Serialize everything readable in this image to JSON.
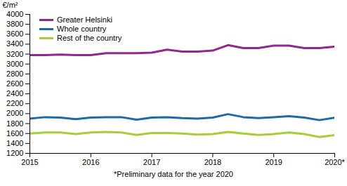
{
  "chart_data": {
    "type": "line",
    "y_label": "€/m²",
    "caption": "*Preliminary data for the year 2020",
    "x": [
      2015,
      2015.25,
      2015.5,
      2015.75,
      2016,
      2016.25,
      2016.5,
      2016.75,
      2017,
      2017.25,
      2017.5,
      2017.75,
      2018,
      2018.25,
      2018.5,
      2018.75,
      2019,
      2019.25,
      2019.5,
      2019.75,
      2020
    ],
    "series": [
      {
        "name": "Greater Helsinki",
        "color": "#93278f",
        "values": [
          3180,
          3180,
          3190,
          3180,
          3180,
          3220,
          3220,
          3220,
          3230,
          3290,
          3250,
          3250,
          3270,
          3380,
          3320,
          3320,
          3370,
          3370,
          3320,
          3320,
          3350
        ]
      },
      {
        "name": "Whole country",
        "color": "#1f6aa5",
        "values": [
          1900,
          1930,
          1920,
          1890,
          1920,
          1930,
          1930,
          1880,
          1920,
          1930,
          1910,
          1900,
          1920,
          1990,
          1930,
          1910,
          1930,
          1950,
          1920,
          1870,
          1920
        ]
      },
      {
        "name": "Rest of the country",
        "color": "#a6ce39",
        "values": [
          1600,
          1620,
          1620,
          1590,
          1620,
          1630,
          1620,
          1570,
          1610,
          1610,
          1600,
          1580,
          1590,
          1630,
          1600,
          1570,
          1590,
          1620,
          1590,
          1530,
          1570
        ]
      }
    ],
    "xlim": [
      2015,
      2020
    ],
    "xticks": [
      2015,
      2016,
      2017,
      2018,
      2019,
      {
        "value": 2020,
        "label": "2020*"
      }
    ],
    "ylim": [
      1200,
      4000
    ],
    "yticks": [
      1200,
      1400,
      1600,
      1800,
      2000,
      2200,
      2400,
      2600,
      2800,
      3000,
      3200,
      3400,
      3600,
      3800,
      4000
    ],
    "grid": false,
    "legend": "top-left"
  }
}
